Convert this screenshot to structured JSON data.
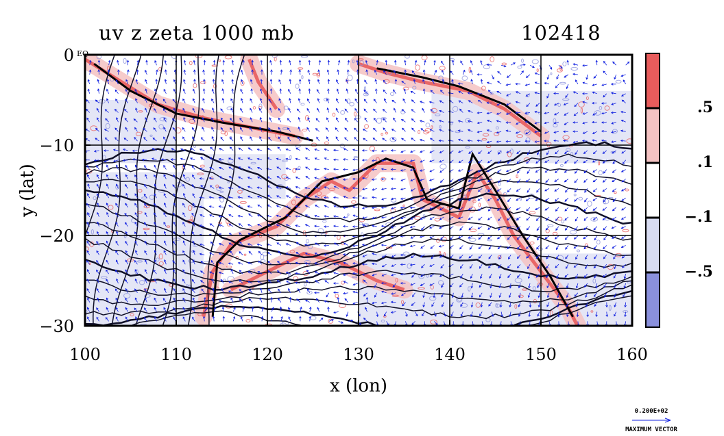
{
  "chart_data": {
    "type": "contour-vector-map",
    "title": "uv z zeta 1000 mb",
    "title_right": "102418",
    "xlabel": "x (lon)",
    "ylabel": "y (lat)",
    "xlim": [
      100,
      160
    ],
    "ylim": [
      -30,
      0
    ],
    "x_ticks": [
      "100",
      "110",
      "120",
      "130",
      "140",
      "150",
      "160"
    ],
    "y_ticks": [
      "0",
      "−10",
      "−20",
      "−30"
    ],
    "y_tick_values": [
      0,
      -10,
      -20,
      -30
    ],
    "x_tick_values": [
      100,
      110,
      120,
      130,
      140,
      150,
      160
    ],
    "top_left_label": "EQ",
    "grid": true,
    "colorbar": {
      "levels": [
        ".5",
        ".1",
        "−.1",
        "−.5"
      ],
      "bins": [
        {
          "color": "#e85c5c"
        },
        {
          "color": "#f4c2c2"
        },
        {
          "color": "#ffffff"
        },
        {
          "color": "#d8dcf2"
        },
        {
          "color": "#8a90dc"
        }
      ]
    },
    "vector_color": "#1020e0",
    "contour_color": "#101028",
    "reference_vector": {
      "value": "0.200E+02",
      "label": "MAXIMUM VECTOR"
    }
  }
}
